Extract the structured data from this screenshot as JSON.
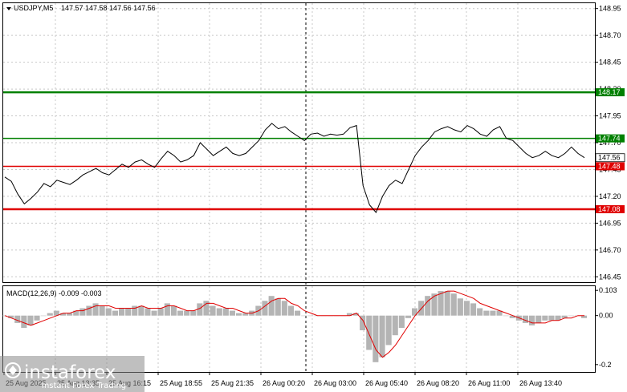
{
  "header": {
    "symbol": "USDJPY,M5",
    "quote": "147.57 147.58 147.56 147.56"
  },
  "macd_header": "MACD(12,26,9) -0.009 -0.003",
  "price_axis": [
    "148.95",
    "148.70",
    "148.45",
    "148.20",
    "147.95",
    "147.70",
    "147.45",
    "147.20",
    "146.95",
    "146.70",
    "146.45"
  ],
  "macd_axis": [
    "0.103",
    "0.00",
    "-0.2"
  ],
  "time_axis": [
    "25 Aug 2025",
    "25 Aug 13:35",
    "25 Aug 16:15",
    "25 Aug 18:55",
    "25 Aug 21:35",
    "26 Aug 00:20",
    "26 Aug 03:00",
    "26 Aug 05:40",
    "26 Aug 08:20",
    "26 Aug 11:00",
    "26 Aug 13:40"
  ],
  "levels": [
    {
      "label": "148.17",
      "color": "#008000",
      "value": 148.17,
      "thick": true
    },
    {
      "label": "147.74",
      "color": "#008000",
      "value": 147.74,
      "thick": false
    },
    {
      "label": "147.48",
      "color": "#e00000",
      "value": 147.48,
      "thick": false
    },
    {
      "label": "147.08",
      "color": "#e00000",
      "value": 147.08,
      "thick": true
    }
  ],
  "current_price": {
    "label": "147.56",
    "value": 147.56
  },
  "watermark": {
    "brand": "instaforex",
    "tagline": "Instant Forex Trading"
  },
  "colors": {
    "grid": "#c8c8c8",
    "price": "#000000",
    "hist": "#b4b4b4",
    "signal": "#e00000"
  },
  "chart_data": {
    "type": "line",
    "price_series": [
      147.38,
      147.34,
      147.22,
      147.13,
      147.18,
      147.24,
      147.32,
      147.29,
      147.35,
      147.33,
      147.31,
      147.35,
      147.4,
      147.43,
      147.46,
      147.42,
      147.4,
      147.45,
      147.5,
      147.47,
      147.52,
      147.54,
      147.5,
      147.47,
      147.55,
      147.62,
      147.58,
      147.52,
      147.54,
      147.58,
      147.7,
      147.64,
      147.58,
      147.62,
      147.66,
      147.6,
      147.58,
      147.6,
      147.66,
      147.72,
      147.82,
      147.88,
      147.83,
      147.85,
      147.8,
      147.76,
      147.72,
      147.78,
      147.79,
      147.76,
      147.78,
      147.77,
      147.78,
      147.84,
      147.86,
      147.3,
      147.12,
      147.05,
      147.2,
      147.3,
      147.35,
      147.32,
      147.45,
      147.58,
      147.66,
      147.72,
      147.8,
      147.83,
      147.85,
      147.82,
      147.8,
      147.86,
      147.83,
      147.78,
      147.76,
      147.82,
      147.85,
      147.74,
      147.72,
      147.66,
      147.6,
      147.56,
      147.58,
      147.62,
      147.58,
      147.56,
      147.6,
      147.66,
      147.6,
      147.56
    ],
    "macd_hist": [
      0.0,
      -0.01,
      -0.03,
      -0.05,
      -0.04,
      -0.02,
      0.0,
      0.01,
      0.02,
      0.01,
      0.01,
      0.02,
      0.03,
      0.04,
      0.05,
      0.04,
      0.03,
      0.02,
      0.03,
      0.03,
      0.04,
      0.04,
      0.03,
      0.02,
      0.03,
      0.05,
      0.04,
      0.02,
      0.02,
      0.02,
      0.05,
      0.06,
      0.04,
      0.03,
      0.03,
      0.02,
      0.01,
      0.01,
      0.02,
      0.04,
      0.06,
      0.08,
      0.07,
      0.06,
      0.04,
      0.02,
      0.0,
      0.0,
      0.0,
      0.0,
      0.0,
      0.0,
      0.0,
      0.01,
      0.01,
      -0.06,
      -0.14,
      -0.19,
      -0.17,
      -0.12,
      -0.08,
      -0.05,
      -0.01,
      0.03,
      0.06,
      0.08,
      0.09,
      0.1,
      0.1,
      0.09,
      0.07,
      0.06,
      0.05,
      0.03,
      0.02,
      0.02,
      0.02,
      0.0,
      -0.01,
      -0.02,
      -0.03,
      -0.04,
      -0.03,
      -0.02,
      -0.02,
      -0.02,
      -0.01,
      0.0,
      0.0,
      -0.01
    ],
    "macd_signal": [
      0.0,
      -0.01,
      -0.02,
      -0.03,
      -0.04,
      -0.03,
      -0.02,
      -0.01,
      0.0,
      0.01,
      0.01,
      0.02,
      0.02,
      0.03,
      0.04,
      0.04,
      0.04,
      0.03,
      0.03,
      0.03,
      0.03,
      0.04,
      0.03,
      0.03,
      0.03,
      0.04,
      0.04,
      0.03,
      0.02,
      0.02,
      0.03,
      0.05,
      0.05,
      0.04,
      0.03,
      0.03,
      0.02,
      0.01,
      0.01,
      0.02,
      0.04,
      0.06,
      0.07,
      0.07,
      0.05,
      0.04,
      0.02,
      0.01,
      0.0,
      0.0,
      0.0,
      0.0,
      0.0,
      0.0,
      0.01,
      -0.02,
      -0.08,
      -0.14,
      -0.17,
      -0.15,
      -0.12,
      -0.08,
      -0.04,
      0.0,
      0.03,
      0.06,
      0.08,
      0.09,
      0.1,
      0.1,
      0.09,
      0.08,
      0.07,
      0.05,
      0.04,
      0.03,
      0.02,
      0.01,
      0.0,
      -0.01,
      -0.02,
      -0.03,
      -0.03,
      -0.03,
      -0.02,
      -0.02,
      -0.01,
      -0.01,
      0.0,
      0.0
    ],
    "price_ylim": [
      146.4,
      149.0
    ],
    "macd_ylim": [
      -0.23,
      0.12
    ]
  }
}
